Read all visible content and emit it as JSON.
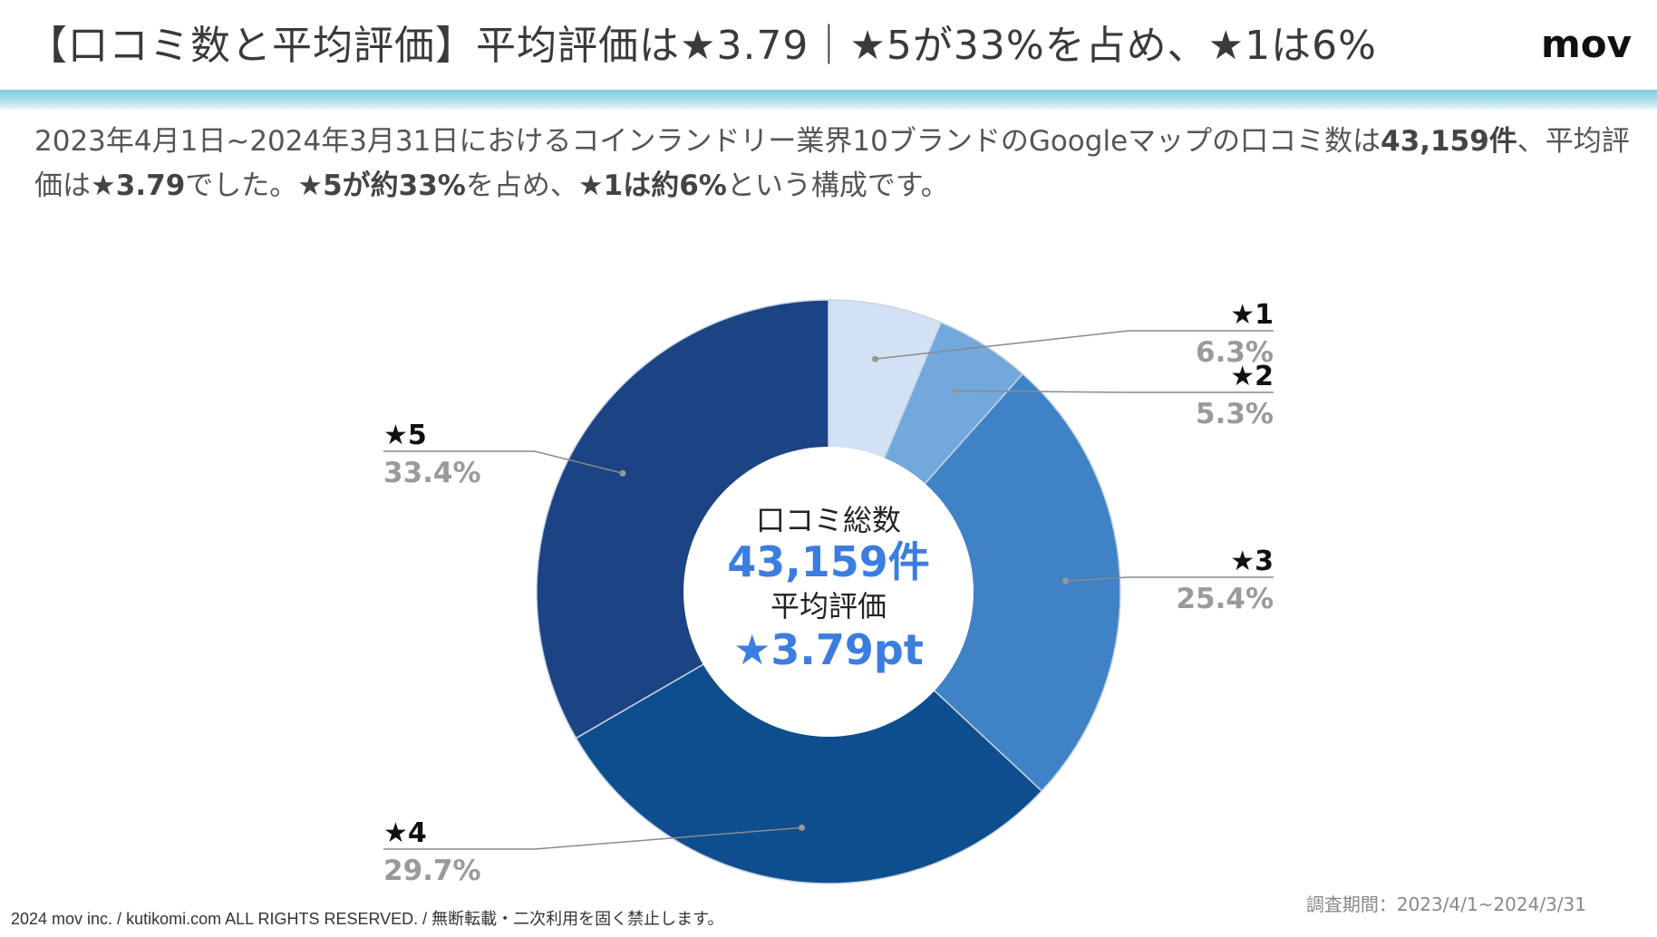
{
  "header": {
    "title": "【口コミ数と平均評価】平均評価は★3.79｜★5が33%を占め、★1は6%",
    "logo": "mov"
  },
  "subtitle": {
    "part1": "2023年4月1日~2024年3月31日におけるコインランドリー業界10ブランドのGoogleマップの口コミ数は",
    "count": "43,159件",
    "part2": "、平均評価は",
    "rating": "★3.79",
    "part3": "でした。",
    "five_share": "★5が約33%",
    "part4": "を占め、",
    "one_share": "★1は約6%",
    "part5": "という構成です。"
  },
  "center": {
    "label_count": "口コミ総数",
    "count": "43,159件",
    "label_rating": "平均評価",
    "rating": "★3.79pt"
  },
  "chart_data": {
    "type": "pie",
    "categories": [
      "★1",
      "★2",
      "★3",
      "★4",
      "★5"
    ],
    "values": [
      6.3,
      5.3,
      25.4,
      29.7,
      33.4
    ],
    "value_labels": [
      "6.3%",
      "5.3%",
      "25.4%",
      "29.7%",
      "33.4%"
    ],
    "colors": [
      "#d2e1f3",
      "#72a8dc",
      "#3f83c6",
      "#0e4e8e",
      "#1c4383"
    ]
  },
  "footer": {
    "copyright": "2024 mov inc. / kutikomi.com ALL RIGHTS RESERVED. / 無断転載・二次利用を固く禁止します。",
    "period": "調査期間：2023/4/1~2024/3/31"
  }
}
